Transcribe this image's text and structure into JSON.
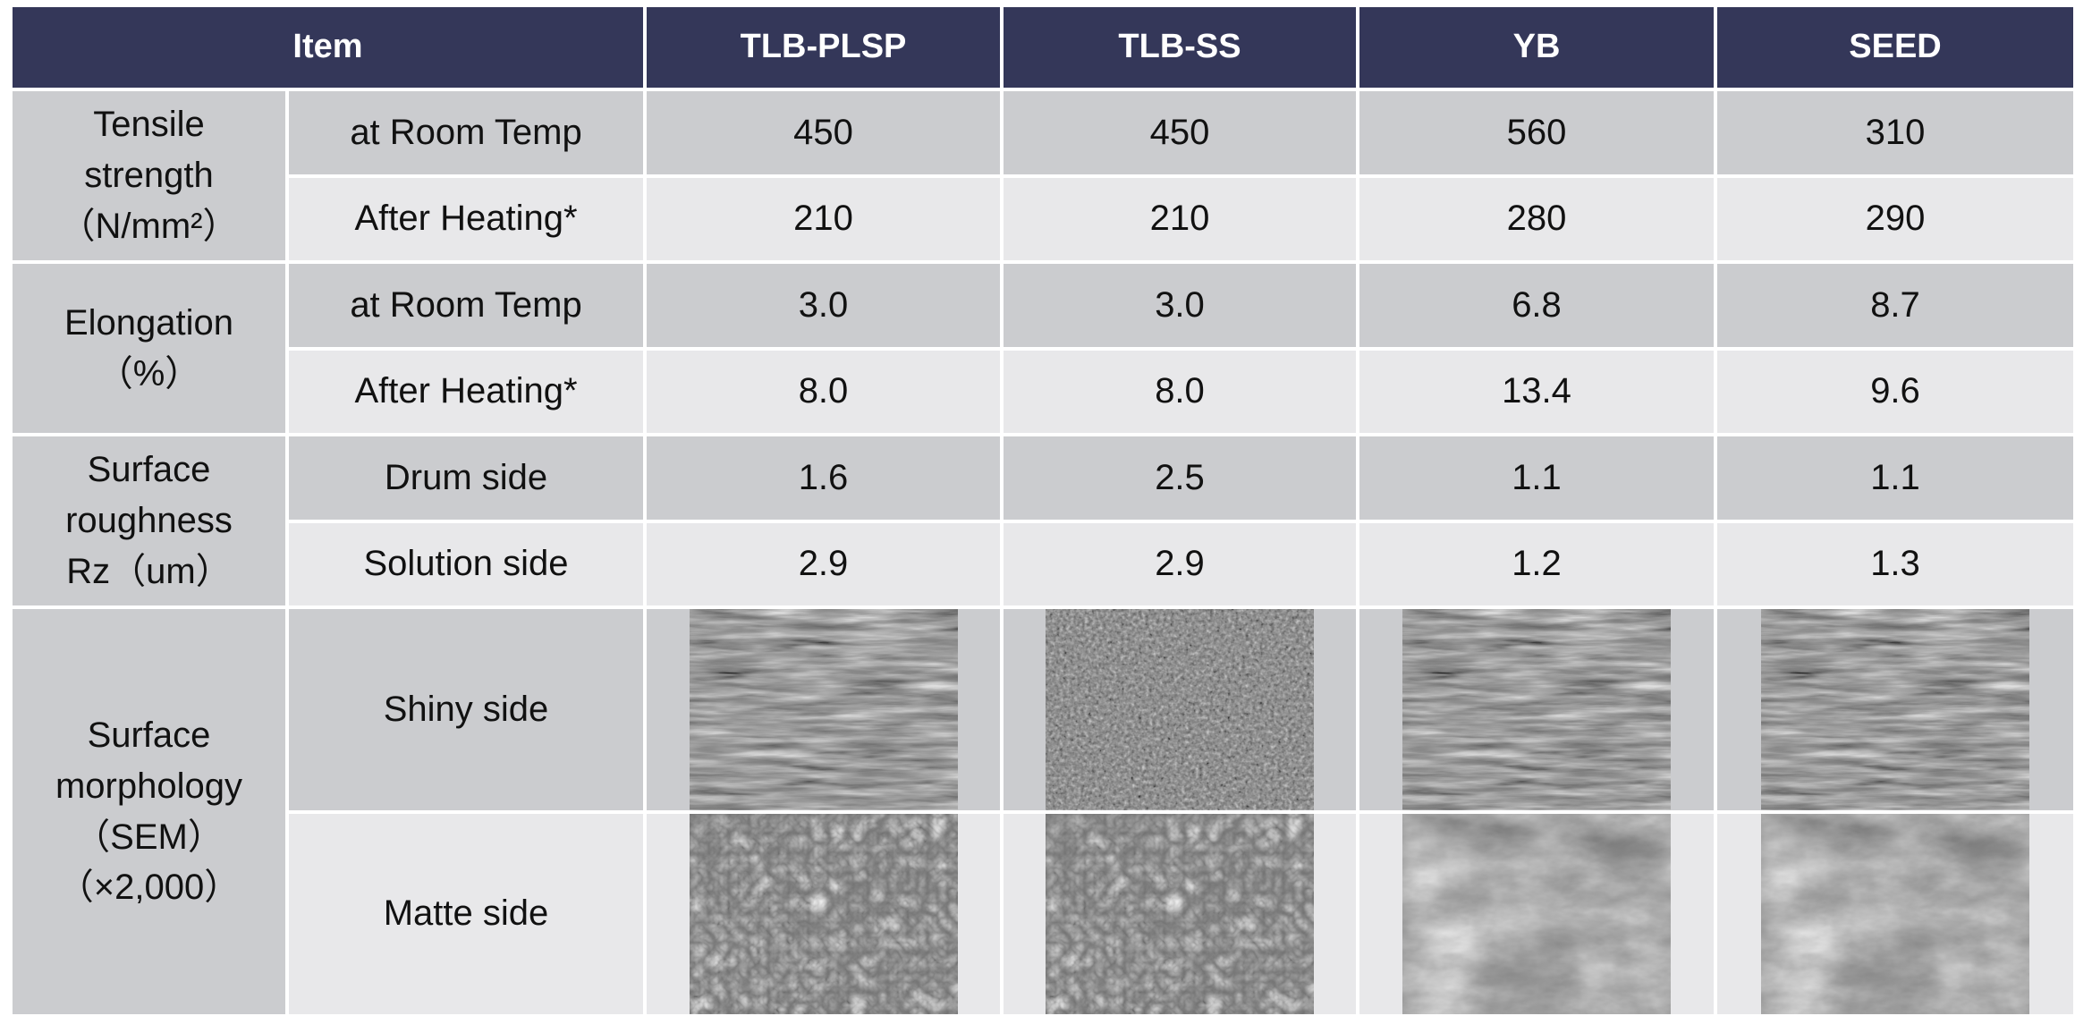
{
  "header": {
    "item": "Item",
    "columns": [
      "TLB-PLSP",
      "TLB-SS",
      "YB",
      "SEED"
    ]
  },
  "groups": [
    {
      "label": [
        "Tensile",
        "strength",
        "（N/mm²）"
      ],
      "rows": [
        {
          "label": "at Room Temp",
          "values": [
            "450",
            "450",
            "560",
            "310"
          ]
        },
        {
          "label": "After Heating*",
          "values": [
            "210",
            "210",
            "280",
            "290"
          ]
        }
      ]
    },
    {
      "label": [
        "Elongation",
        "（%）"
      ],
      "rows": [
        {
          "label": "at Room Temp",
          "values": [
            "3.0",
            "3.0",
            "6.8",
            "8.7"
          ]
        },
        {
          "label": "After Heating*",
          "values": [
            "8.0",
            "8.0",
            "13.4",
            "9.6"
          ]
        }
      ]
    },
    {
      "label": [
        "Surface",
        "roughness",
        "Rz（um）"
      ],
      "rows": [
        {
          "label": "Drum side",
          "values": [
            "1.6",
            "2.5",
            "1.1",
            "1.1"
          ]
        },
        {
          "label": "Solution side",
          "values": [
            "2.9",
            "2.9",
            "1.2",
            "1.3"
          ]
        }
      ]
    },
    {
      "label": [
        "Surface",
        "morphology",
        "（SEM）",
        "（×2,000）"
      ],
      "rows": [
        {
          "label": "Shiny side"
        },
        {
          "label": "Matte side"
        }
      ]
    }
  ]
}
